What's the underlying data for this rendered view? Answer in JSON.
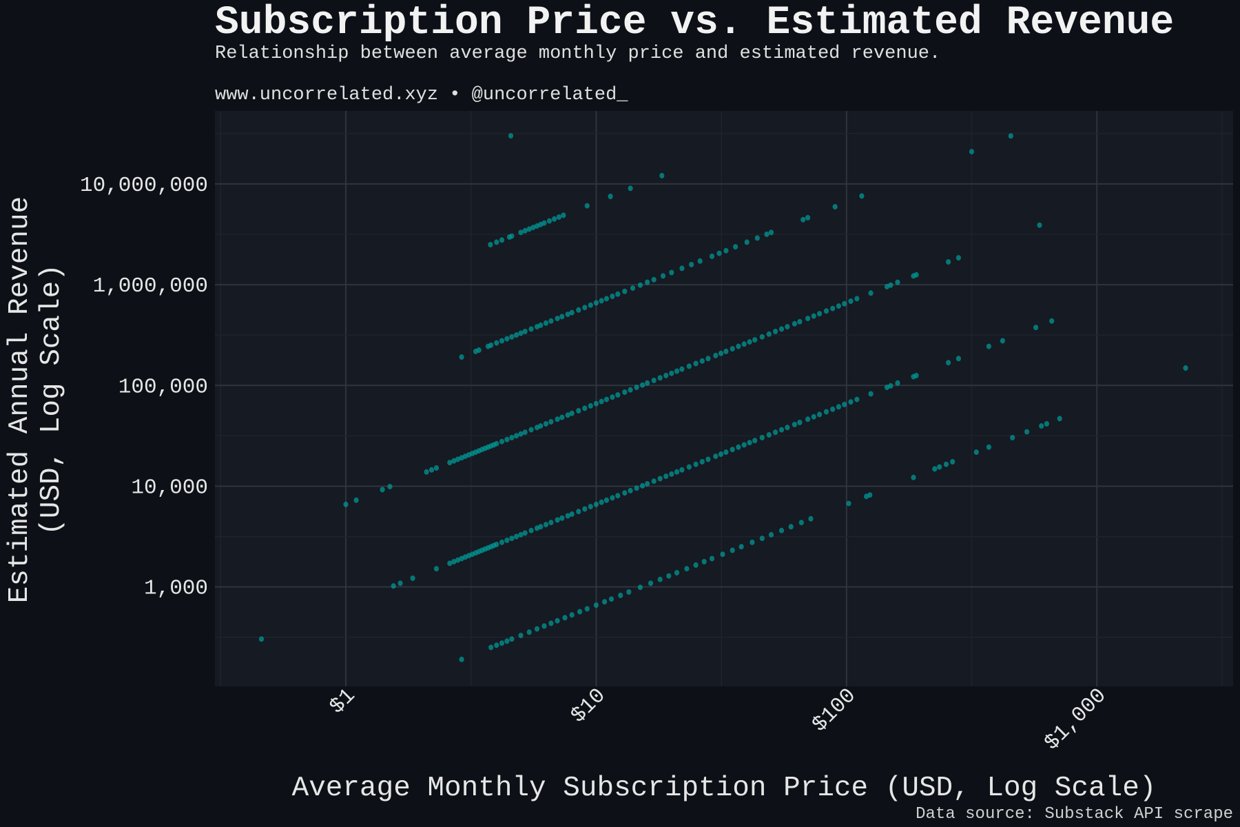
{
  "chart_data": {
    "type": "scatter",
    "title": "Subscription Price vs. Estimated Revenue",
    "subtitle": "Relationship between average monthly price and estimated revenue.",
    "attribution": "www.uncorrelated.xyz • @uncorrelated_",
    "xlabel": "Average Monthly Subscription Price (USD, Log Scale)",
    "ylabel_lines": [
      "Estimated Annual Revenue",
      "(USD, Log Scale)"
    ],
    "source": "Data source: Substack API scrape",
    "x_scale": "log",
    "y_scale": "log",
    "xlim": [
      0.3,
      3500
    ],
    "ylim": [
      103,
      53000000
    ],
    "grid": true,
    "x_ticks": [
      {
        "value": 1,
        "label": "$1"
      },
      {
        "value": 10,
        "label": "$10"
      },
      {
        "value": 100,
        "label": "$100"
      },
      {
        "value": 1000,
        "label": "$1,000"
      }
    ],
    "y_ticks": [
      {
        "value": 1000,
        "label": "1,000"
      },
      {
        "value": 10000,
        "label": "10,000"
      },
      {
        "value": 100000,
        "label": "100,000"
      },
      {
        "value": 1000000,
        "label": "1,000,000"
      },
      {
        "value": 10000000,
        "label": "10,000,000"
      }
    ],
    "colors": {
      "background": "#0d1117",
      "plot_background": "#161a22",
      "grid_major": "#30343c",
      "grid_minor": "#1f232b",
      "points": "#009b98",
      "text": "#ebebeb"
    },
    "points": [
      [
        0.46,
        304
      ],
      [
        1.0,
        6600
      ],
      [
        1.1,
        7260
      ],
      [
        1.4,
        9240
      ],
      [
        1.5,
        9900
      ],
      [
        4.56,
        30000000
      ],
      [
        316,
        20900000
      ],
      [
        453,
        29900000
      ],
      [
        590,
        3900000
      ],
      [
        2260,
        149000
      ],
      [
        3.78,
        2494800
      ],
      [
        4.0,
        2640000
      ],
      [
        4.2,
        2772000
      ],
      [
        4.5,
        2970000
      ],
      [
        4.6,
        3036000
      ],
      [
        5.0,
        3300000
      ],
      [
        5.2,
        3432000
      ],
      [
        5.4,
        3564000
      ],
      [
        5.6,
        3696000
      ],
      [
        5.8,
        3828000
      ],
      [
        6.0,
        3960000
      ],
      [
        6.2,
        4092000
      ],
      [
        6.5,
        4290000
      ],
      [
        6.8,
        4488000
      ],
      [
        7.1,
        4686000
      ],
      [
        7.4,
        4884000
      ],
      [
        9.2,
        6072000
      ],
      [
        11.4,
        7524000
      ],
      [
        13.7,
        9042000
      ],
      [
        18.3,
        12078000
      ],
      [
        2.9,
        191400
      ],
      [
        3.3,
        217800
      ],
      [
        3.4,
        224400
      ],
      [
        3.7,
        244200
      ],
      [
        3.8,
        250800
      ],
      [
        4.0,
        264000
      ],
      [
        4.2,
        277200
      ],
      [
        4.4,
        290400
      ],
      [
        4.6,
        303600
      ],
      [
        4.8,
        316800
      ],
      [
        5.0,
        330000
      ],
      [
        5.2,
        343200
      ],
      [
        5.5,
        363000
      ],
      [
        5.8,
        382800
      ],
      [
        6.0,
        396000
      ],
      [
        6.3,
        415800
      ],
      [
        6.6,
        435600
      ],
      [
        7.0,
        462000
      ],
      [
        7.3,
        481800
      ],
      [
        7.7,
        508200
      ],
      [
        8.0,
        528000
      ],
      [
        8.5,
        561000
      ],
      [
        9.0,
        594000
      ],
      [
        9.5,
        627000
      ],
      [
        10,
        660000
      ],
      [
        10.5,
        693000
      ],
      [
        11,
        726000
      ],
      [
        11.6,
        765600
      ],
      [
        12.2,
        805200
      ],
      [
        13,
        858000
      ],
      [
        14,
        924000
      ],
      [
        15,
        990000
      ],
      [
        16,
        1056000
      ],
      [
        17,
        1122000
      ],
      [
        18.5,
        1221000
      ],
      [
        20,
        1320000
      ],
      [
        22,
        1452000
      ],
      [
        24,
        1584000
      ],
      [
        26,
        1716000
      ],
      [
        29,
        1914000
      ],
      [
        31,
        2046000
      ],
      [
        33,
        2178000
      ],
      [
        36,
        2376000
      ],
      [
        40,
        2640000
      ],
      [
        44,
        2904000
      ],
      [
        48,
        3168000
      ],
      [
        50,
        3300000
      ],
      [
        67,
        4422000
      ],
      [
        70,
        4620000
      ],
      [
        90,
        5940000
      ],
      [
        115,
        7590000
      ],
      [
        2.1,
        13860
      ],
      [
        2.2,
        14520
      ],
      [
        2.3,
        15180
      ],
      [
        2.6,
        17160
      ],
      [
        2.7,
        17820
      ],
      [
        2.8,
        18480
      ],
      [
        2.9,
        19140
      ],
      [
        3.0,
        19800
      ],
      [
        3.1,
        20460
      ],
      [
        3.2,
        21120
      ],
      [
        3.3,
        21780
      ],
      [
        3.4,
        22440
      ],
      [
        3.5,
        23100
      ],
      [
        3.6,
        23760
      ],
      [
        3.7,
        24420
      ],
      [
        3.8,
        25080
      ],
      [
        3.9,
        25740
      ],
      [
        4.0,
        26400
      ],
      [
        4.2,
        27720
      ],
      [
        4.4,
        29040
      ],
      [
        4.6,
        30360
      ],
      [
        4.8,
        31680
      ],
      [
        5.0,
        33000
      ],
      [
        5.2,
        34320
      ],
      [
        5.5,
        36300
      ],
      [
        5.8,
        38280
      ],
      [
        6.0,
        39600
      ],
      [
        6.3,
        41580
      ],
      [
        6.6,
        43560
      ],
      [
        7.0,
        46200
      ],
      [
        7.3,
        48180
      ],
      [
        7.7,
        50820
      ],
      [
        8.0,
        52800
      ],
      [
        8.5,
        56100
      ],
      [
        9.0,
        59400
      ],
      [
        9.5,
        62700
      ],
      [
        10,
        66000
      ],
      [
        10.5,
        69300
      ],
      [
        11,
        72600
      ],
      [
        11.6,
        76560
      ],
      [
        12.2,
        80520
      ],
      [
        13,
        85800
      ],
      [
        13.7,
        90420
      ],
      [
        14.5,
        95700
      ],
      [
        15.3,
        100980
      ],
      [
        16,
        105600
      ],
      [
        17,
        112200
      ],
      [
        18,
        118800
      ],
      [
        19,
        125400
      ],
      [
        20,
        132000
      ],
      [
        21,
        138600
      ],
      [
        22,
        145200
      ],
      [
        23.5,
        155100
      ],
      [
        25,
        165000
      ],
      [
        26.5,
        174900
      ],
      [
        28,
        184800
      ],
      [
        30,
        198000
      ],
      [
        31.5,
        207900
      ],
      [
        33,
        217800
      ],
      [
        35,
        231000
      ],
      [
        37,
        244200
      ],
      [
        39,
        257400
      ],
      [
        41,
        270600
      ],
      [
        43,
        283800
      ],
      [
        46,
        303600
      ],
      [
        49,
        323400
      ],
      [
        52,
        343200
      ],
      [
        55,
        363000
      ],
      [
        58,
        382800
      ],
      [
        62,
        409200
      ],
      [
        65,
        429000
      ],
      [
        70,
        462000
      ],
      [
        74,
        488400
      ],
      [
        78,
        514800
      ],
      [
        83,
        547800
      ],
      [
        88,
        580800
      ],
      [
        93,
        613800
      ],
      [
        98,
        646800
      ],
      [
        104,
        686400
      ],
      [
        110,
        726000
      ],
      [
        125,
        825000
      ],
      [
        145,
        957000
      ],
      [
        150,
        990000
      ],
      [
        160,
        1056000
      ],
      [
        185,
        1221000
      ],
      [
        190,
        1254000
      ],
      [
        255,
        1683000
      ],
      [
        280,
        1848000
      ],
      [
        1.55,
        1023
      ],
      [
        1.65,
        1089
      ],
      [
        1.85,
        1221
      ],
      [
        2.3,
        1518
      ],
      [
        2.6,
        1716
      ],
      [
        2.7,
        1782
      ],
      [
        2.8,
        1848
      ],
      [
        2.9,
        1914
      ],
      [
        3.0,
        1980
      ],
      [
        3.1,
        2046
      ],
      [
        3.2,
        2112
      ],
      [
        3.3,
        2178
      ],
      [
        3.4,
        2244
      ],
      [
        3.5,
        2310
      ],
      [
        3.6,
        2376
      ],
      [
        3.7,
        2442
      ],
      [
        3.8,
        2508
      ],
      [
        3.9,
        2574
      ],
      [
        4.0,
        2640
      ],
      [
        4.2,
        2772
      ],
      [
        4.4,
        2904
      ],
      [
        4.6,
        3036
      ],
      [
        4.8,
        3168
      ],
      [
        5.0,
        3300
      ],
      [
        5.2,
        3432
      ],
      [
        5.5,
        3630
      ],
      [
        5.8,
        3828
      ],
      [
        6.0,
        3960
      ],
      [
        6.3,
        4158
      ],
      [
        6.6,
        4356
      ],
      [
        7.0,
        4620
      ],
      [
        7.3,
        4818
      ],
      [
        7.7,
        5082
      ],
      [
        8.0,
        5280
      ],
      [
        8.5,
        5610
      ],
      [
        9.0,
        5940
      ],
      [
        9.5,
        6270
      ],
      [
        10,
        6600
      ],
      [
        10.5,
        6930
      ],
      [
        11,
        7260
      ],
      [
        11.6,
        7656
      ],
      [
        12.2,
        8052
      ],
      [
        13,
        8580
      ],
      [
        13.7,
        9042
      ],
      [
        14.5,
        9570
      ],
      [
        15.3,
        10098
      ],
      [
        16,
        10560
      ],
      [
        17,
        11220
      ],
      [
        18,
        11880
      ],
      [
        19,
        12540
      ],
      [
        20,
        13200
      ],
      [
        21,
        13860
      ],
      [
        22,
        14520
      ],
      [
        23.5,
        15510
      ],
      [
        25,
        16500
      ],
      [
        26.5,
        17490
      ],
      [
        28,
        18480
      ],
      [
        30,
        19800
      ],
      [
        31.5,
        20790
      ],
      [
        33,
        21780
      ],
      [
        35,
        23100
      ],
      [
        37,
        24420
      ],
      [
        39,
        25740
      ],
      [
        41,
        27060
      ],
      [
        43,
        28380
      ],
      [
        46,
        30360
      ],
      [
        49,
        32340
      ],
      [
        52,
        34320
      ],
      [
        55,
        36300
      ],
      [
        58,
        38280
      ],
      [
        62,
        40920
      ],
      [
        65,
        42900
      ],
      [
        70,
        46200
      ],
      [
        74,
        48840
      ],
      [
        78,
        51480
      ],
      [
        83,
        54780
      ],
      [
        88,
        58080
      ],
      [
        93,
        61380
      ],
      [
        98,
        64680
      ],
      [
        104,
        68640
      ],
      [
        110,
        72600
      ],
      [
        125,
        82500
      ],
      [
        145,
        95700
      ],
      [
        150,
        99000
      ],
      [
        160,
        105600
      ],
      [
        185,
        122100
      ],
      [
        190,
        125400
      ],
      [
        255,
        168300
      ],
      [
        280,
        184800
      ],
      [
        370,
        244200
      ],
      [
        420,
        277200
      ],
      [
        570,
        376200
      ],
      [
        660,
        435600
      ],
      [
        2.9,
        191
      ],
      [
        3.8,
        251
      ],
      [
        4.0,
        264
      ],
      [
        4.2,
        277
      ],
      [
        4.4,
        290
      ],
      [
        4.6,
        304
      ],
      [
        5.0,
        330
      ],
      [
        5.4,
        356
      ],
      [
        5.8,
        383
      ],
      [
        6.2,
        409
      ],
      [
        6.6,
        436
      ],
      [
        7.0,
        462
      ],
      [
        7.5,
        495
      ],
      [
        8,
        528
      ],
      [
        8.6,
        568
      ],
      [
        9.2,
        607
      ],
      [
        10,
        660
      ],
      [
        10.8,
        713
      ],
      [
        11.5,
        759
      ],
      [
        12.5,
        825
      ],
      [
        13.5,
        891
      ],
      [
        15,
        990
      ],
      [
        16.5,
        1089
      ],
      [
        18,
        1188
      ],
      [
        19.5,
        1287
      ],
      [
        21,
        1386
      ],
      [
        23,
        1518
      ],
      [
        25,
        1650
      ],
      [
        27,
        1782
      ],
      [
        29,
        1914
      ],
      [
        32,
        2112
      ],
      [
        35,
        2310
      ],
      [
        38,
        2508
      ],
      [
        42,
        2772
      ],
      [
        46,
        3036
      ],
      [
        50,
        3300
      ],
      [
        55,
        3630
      ],
      [
        60,
        3960
      ],
      [
        66,
        4356
      ],
      [
        72,
        4752
      ],
      [
        102,
        6732
      ],
      [
        120,
        7920
      ],
      [
        124,
        8184
      ],
      [
        185,
        12210
      ],
      [
        225,
        14850
      ],
      [
        235,
        15510
      ],
      [
        250,
        16500
      ],
      [
        265,
        17490
      ],
      [
        330,
        21780
      ],
      [
        370,
        24420
      ],
      [
        460,
        30360
      ],
      [
        525,
        34650
      ],
      [
        600,
        39600
      ],
      [
        630,
        41580
      ],
      [
        710,
        46860
      ]
    ]
  }
}
